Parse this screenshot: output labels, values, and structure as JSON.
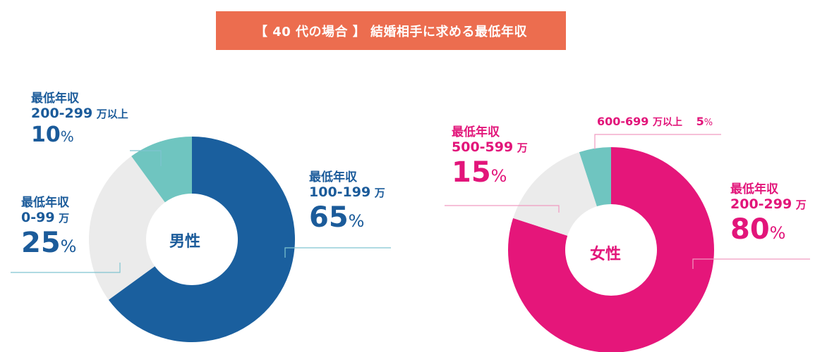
{
  "title": "【 40 代の場合 】 結婚相手に求める最低年収",
  "colors": {
    "banner": "#ec6d4f",
    "male_main": "#1a5f9e",
    "female_main": "#e5167a",
    "light_gray": "#ebebeb",
    "teal": "#6fc5c0",
    "male_text": "#1b5b9a",
    "female_text": "#e2157a",
    "male_line": "#7fc4d0",
    "female_line": "#f09ac0"
  },
  "chart_data": [
    {
      "type": "pie",
      "center_label": "男性",
      "slices": [
        {
          "caption": "最低年収",
          "range": "100-199",
          "unit": "万",
          "value": 65,
          "pct_label": "65",
          "color": "#1a5f9e"
        },
        {
          "caption": "最低年収",
          "range": "0-99",
          "unit": "万",
          "value": 25,
          "pct_label": "25",
          "color": "#ebebeb"
        },
        {
          "caption": "最低年収",
          "range": "200-299",
          "unit": "万以上",
          "value": 10,
          "pct_label": "10",
          "color": "#6fc5c0"
        }
      ]
    },
    {
      "type": "pie",
      "center_label": "女性",
      "slices": [
        {
          "caption": "最低年収",
          "range": "200-299",
          "unit": "万",
          "value": 80,
          "pct_label": "80",
          "color": "#e5167a"
        },
        {
          "caption": "最低年収",
          "range": "500-599",
          "unit": "万",
          "value": 15,
          "pct_label": "15",
          "color": "#ebebeb"
        },
        {
          "caption": "",
          "range": "600-699",
          "unit": "万以上",
          "value": 5,
          "pct_label": "5",
          "color": "#6fc5c0"
        }
      ]
    }
  ]
}
